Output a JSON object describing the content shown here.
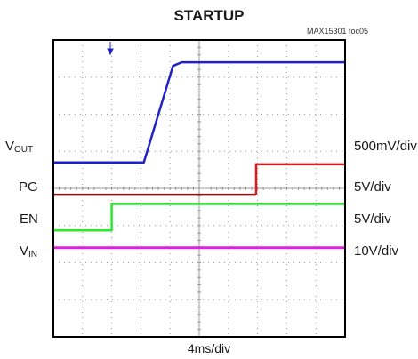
{
  "title": "STARTUP",
  "subtitle": "MAX15301 toc05",
  "colors": {
    "vout": "#2020c8",
    "pg": "#e01818",
    "en": "#2ee82e",
    "vin": "#e020e0",
    "pg_low": "#8a1414",
    "grid": "#9a9a9a",
    "frame": "#000000"
  },
  "chart_data": {
    "type": "line",
    "title": "STARTUP",
    "xlabel": "4ms/div",
    "grid": true,
    "x_divisions": 10,
    "y_divisions": 8,
    "xlim": [
      0,
      10
    ],
    "ylim": [
      0,
      8
    ],
    "series": [
      {
        "key": "vout",
        "name": "VOUT",
        "scale": "500mV/div",
        "x": [
          0,
          3.1,
          4.1,
          4.4,
          10
        ],
        "y": [
          4.7,
          4.7,
          7.3,
          7.4,
          7.4
        ]
      },
      {
        "key": "pg",
        "name": "PG",
        "scale": "5V/div",
        "x": [
          0,
          6.95,
          6.95,
          10
        ],
        "y": [
          3.83,
          3.83,
          4.65,
          4.65
        ]
      },
      {
        "key": "en",
        "name": "EN",
        "scale": "5V/div",
        "x": [
          0,
          2.0,
          2.0,
          10
        ],
        "y": [
          2.87,
          2.87,
          3.58,
          3.58
        ]
      },
      {
        "key": "vin",
        "name": "VIN",
        "scale": "10V/div",
        "x": [
          0,
          10
        ],
        "y": [
          2.4,
          2.4
        ]
      }
    ]
  },
  "labels": {
    "vout_main": "V",
    "vout_sub": "OUT",
    "pg": "PG",
    "en": "EN",
    "vin_main": "V",
    "vin_sub": "IN",
    "vout_scale": "500mV/div",
    "pg_scale": "5V/div",
    "en_scale": "5V/div",
    "vin_scale": "10V/div",
    "xlabel": "4ms/div"
  }
}
